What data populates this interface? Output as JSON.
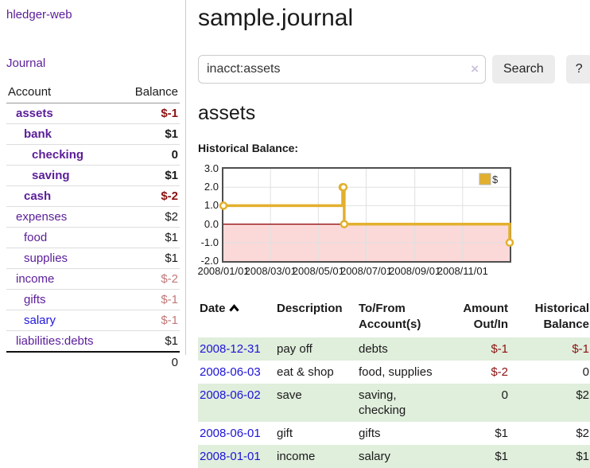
{
  "palette": {
    "link_purple": "#5b1d99",
    "link_blue": "#2016dd",
    "date_link_blue": "#1d14d8",
    "negative_strong": "#8b1111",
    "negative_soft": "#c17878",
    "row_stripe_green": "#e0eedc",
    "button_bg": "#ececec",
    "chart_line": "#e3b02d",
    "chart_marker_fill": "#fffdf4",
    "chart_negative_fill": "#fbd9d9",
    "chart_zero_line": "#8b0000",
    "chart_border": "#4f4f4f",
    "chart_grid": "#e0e0e0",
    "legend_swatch_border": "#b3b3b3"
  },
  "sidebar": {
    "brand": "hledger-web",
    "journal_label": "Journal",
    "accounts": {
      "header_account": "Account",
      "header_balance": "Balance",
      "rows": [
        {
          "name": "assets",
          "balance": "$-1",
          "level": 1,
          "bold": true
        },
        {
          "name": "bank",
          "balance": "$1",
          "level": 2,
          "bold": true
        },
        {
          "name": "checking",
          "balance": "0",
          "level": 3,
          "bold": true
        },
        {
          "name": "saving",
          "balance": "$1",
          "level": 3,
          "bold": true
        },
        {
          "name": "cash",
          "balance": "$-2",
          "level": 2,
          "bold": true
        },
        {
          "name": "expenses",
          "balance": "$2",
          "level": 1,
          "bold": false
        },
        {
          "name": "food",
          "balance": "$1",
          "level": 2,
          "bold": false
        },
        {
          "name": "supplies",
          "balance": "$1",
          "level": 2,
          "bold": false
        },
        {
          "name": "income",
          "balance": "$-2",
          "level": 1,
          "bold": false
        },
        {
          "name": "gifts",
          "balance": "$-1",
          "level": 2,
          "bold": false
        },
        {
          "name": "salary",
          "balance": "$-1",
          "level": 2,
          "bold": false,
          "blue": true
        },
        {
          "name": "liabilities:debts",
          "balance": "$1",
          "level": 1,
          "bold": false
        }
      ],
      "total": "0"
    }
  },
  "main": {
    "title": "sample.journal",
    "search": {
      "value": "inacct:assets",
      "clear_icon": "×",
      "button_label": "Search",
      "help_label": "?"
    },
    "account_heading": "assets"
  },
  "chart_data": {
    "type": "line",
    "interpolation": "step-after",
    "title": "Historical Balance:",
    "x_range": [
      "2008-01-01",
      "2008-12-31"
    ],
    "ylim": [
      -2,
      3
    ],
    "y_ticks": [
      "3.0",
      "2.0",
      "1.0",
      "0.0",
      "-1.0",
      "-2.0"
    ],
    "x_ticks": [
      {
        "date": "2008-01-01",
        "label": "2008/01/01"
      },
      {
        "date": "2008-03-01",
        "label": "2008/03/01"
      },
      {
        "date": "2008-05-01",
        "label": "2008/05/01"
      },
      {
        "date": "2008-07-01",
        "label": "2008/07/01"
      },
      {
        "date": "2008-09-01",
        "label": "2008/09/01"
      },
      {
        "date": "2008-11-01",
        "label": "2008/11/01"
      }
    ],
    "series": [
      {
        "name": "$",
        "points": [
          {
            "date": "2008-01-01",
            "value": 1
          },
          {
            "date": "2008-06-01",
            "value": 2
          },
          {
            "date": "2008-06-02",
            "value": 2
          },
          {
            "date": "2008-06-03",
            "value": 0
          },
          {
            "date": "2008-12-31",
            "value": -1
          }
        ]
      }
    ],
    "legend": {
      "position": "top-right",
      "entries": [
        {
          "label": "$"
        }
      ]
    },
    "grid": true,
    "zero_line": true,
    "negative_region_shaded": true
  },
  "register": {
    "headers": [
      {
        "label": "Date",
        "sort_icon": "chevron-up",
        "align": "left"
      },
      {
        "label": "Description",
        "align": "left"
      },
      {
        "label": "To/From Account(s)",
        "align": "left"
      },
      {
        "label": "Amount Out/In",
        "align": "right"
      },
      {
        "label": "Historical Balance",
        "align": "right"
      }
    ],
    "rows": [
      {
        "date": "2008-12-31",
        "description": "pay off",
        "accounts": "debts",
        "amount": "$-1",
        "balance": "$-1"
      },
      {
        "date": "2008-06-03",
        "description": "eat & shop",
        "accounts": "food, supplies",
        "amount": "$-2",
        "balance": "0"
      },
      {
        "date": "2008-06-02",
        "description": "save",
        "accounts": "saving, checking",
        "amount": "0",
        "balance": "$2"
      },
      {
        "date": "2008-06-01",
        "description": "gift",
        "accounts": "gifts",
        "amount": "$1",
        "balance": "$2"
      },
      {
        "date": "2008-01-01",
        "description": "income",
        "accounts": "salary",
        "amount": "$1",
        "balance": "$1"
      }
    ]
  }
}
